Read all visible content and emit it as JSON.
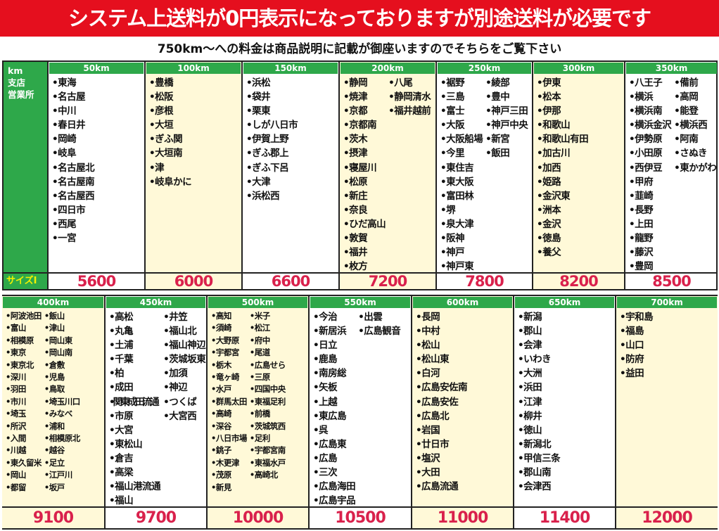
{
  "banner": "システム上送料が0円表示になっておりますが別途送料が必要です",
  "subtitle": "750km～への料金は商品説明に記載が御座いますのでそちらをご覧下さい",
  "row_label": {
    "lines": [
      "km",
      "支店",
      "営業所"
    ],
    "size_label": "サイズI"
  },
  "colors": {
    "header_green": "#2ea84a",
    "banner_red": "#e50f1e",
    "price_red": "#d9214c",
    "cream": "#fff9d8"
  },
  "top_table": [
    {
      "km": "50km",
      "price": "5600",
      "items": [
        [
          "東海",
          "名古屋",
          "中川",
          "春日井",
          "岡崎",
          "岐阜",
          "名古屋北",
          "名古屋南",
          "名古屋西",
          "四日市",
          "西尾",
          "一宮"
        ]
      ]
    },
    {
      "km": "100km",
      "price": "6000",
      "items": [
        [
          "豊橋",
          "松阪",
          "彦根",
          "大垣",
          "ぎふ関",
          "大垣南",
          "津",
          "岐阜かに"
        ]
      ]
    },
    {
      "km": "150km",
      "price": "6600",
      "items": [
        [
          "浜松",
          "袋井",
          "栗東",
          "しが八日市",
          "伊賀上野",
          "ぎふ郡上",
          "ぎふ下呂",
          "大津",
          "浜松西"
        ]
      ]
    },
    {
      "km": "200km",
      "price": "7200",
      "items": [
        [
          "静岡",
          "焼津",
          "京都",
          "京都南",
          "茨木",
          "摂津",
          "寝屋川",
          "松原",
          "新庄",
          "奈良",
          "ひだ高山",
          "敦賀",
          "福井",
          "枚方"
        ],
        [
          "八尾",
          "静岡清水",
          "福井越前"
        ]
      ]
    },
    {
      "km": "250km",
      "price": "7800",
      "items": [
        [
          "裾野",
          "三島",
          "富士",
          "大阪",
          "大阪船場",
          "今里",
          "東住吉",
          "東大阪",
          "富田林",
          "堺",
          "泉大津",
          "阪神",
          "神戸",
          "神戸東"
        ],
        [
          "綾部",
          "豊中",
          "神戸三田",
          "神戸中央",
          "新宮",
          "飯田"
        ]
      ]
    },
    {
      "km": "300km",
      "price": "8200",
      "items": [
        [
          "伊東",
          "松本",
          "伊那",
          "和歌山",
          "和歌山有田",
          "加古川",
          "加西",
          "姫路",
          "金沢東",
          "洲本",
          "金沢",
          "徳島",
          "養父"
        ]
      ]
    },
    {
      "km": "350km",
      "price": "8500",
      "items": [
        [
          "八王子",
          "横浜",
          "横浜南",
          "横浜金沢",
          "伊勢原",
          "小田原",
          "西伊豆",
          "甲府",
          "韮崎",
          "長野",
          "上田",
          "龍野",
          "藤沢",
          "豊岡"
        ],
        [
          "備前",
          "高岡",
          "能登",
          "横浜西",
          "阿南",
          "さぬき",
          "東かがわ"
        ]
      ]
    }
  ],
  "bottom_table": [
    {
      "km": "400km",
      "price": "9100",
      "items": [
        [
          "阿波池田",
          "富山",
          "相模原",
          "東京",
          "東京北",
          "深川",
          "羽田",
          "市川",
          "埼玉",
          "所沢",
          "入間",
          "川越",
          "東久留米",
          "岡山",
          "都留"
        ],
        [
          "飯山",
          "津山",
          "岡山東",
          "岡山南",
          "倉敷",
          "児島",
          "鳥取",
          "埼玉川口",
          "みなべ",
          "浦和",
          "相模原北",
          "越谷",
          "足立",
          "江戸川",
          "坂戸"
        ]
      ]
    },
    {
      "km": "450km",
      "price": "9700",
      "items": [
        [
          "高松",
          "丸亀",
          "土浦",
          "千葉",
          "柏",
          "成田",
          "関東成田流通",
          "市原",
          "大宮",
          "東松山",
          "倉吉",
          "高梁",
          "福山港流通",
          "福山"
        ],
        [
          "井笠",
          "福山北",
          "福山神辺",
          "茨城坂東",
          "加須",
          "神辺",
          "つくば",
          "大宮西"
        ]
      ]
    },
    {
      "km": "500km",
      "price": "10000",
      "items": [
        [
          "高知",
          "須崎",
          "大野原",
          "宇都宮",
          "栃木",
          "竜ヶ崎",
          "水戸",
          "群馬太田",
          "高崎",
          "深谷",
          "八日市場",
          "銚子",
          "木更津",
          "茂原",
          "新見"
        ],
        [
          "米子",
          "松江",
          "府中",
          "尾道",
          "広島せら",
          "三原",
          "四国中央",
          "東福足利",
          "前橋",
          "茨城筑西",
          "足利",
          "宇都宮南",
          "東福水戸",
          "高崎北"
        ]
      ]
    },
    {
      "km": "550km",
      "price": "10500",
      "items": [
        [
          "今治",
          "新居浜",
          "日立",
          "鹿島",
          "南房総",
          "矢板",
          "上越",
          "東広島",
          "呉",
          "広島東",
          "広島",
          "三次",
          "広島海田",
          "広島宇品"
        ],
        [
          "出雲",
          "広島観音"
        ]
      ]
    },
    {
      "km": "600km",
      "price": "11000",
      "items": [
        [
          "長岡",
          "中村",
          "松山",
          "松山東",
          "白河",
          "広島安佐南",
          "広島安佐",
          "広島北",
          "岩国",
          "廿日市",
          "塩沢",
          "大田",
          "広島流通"
        ]
      ]
    },
    {
      "km": "650km",
      "price": "11400",
      "items": [
        [
          "新潟",
          "郡山",
          "会津",
          "いわき",
          "大洲",
          "浜田",
          "江津",
          "柳井",
          "徳山",
          "新潟北",
          "甲信三条",
          "郡山南",
          "会津西"
        ]
      ]
    },
    {
      "km": "700km",
      "price": "12000",
      "items": [
        [
          "宇和島",
          "福島",
          "山口",
          "防府",
          "益田"
        ]
      ]
    }
  ]
}
